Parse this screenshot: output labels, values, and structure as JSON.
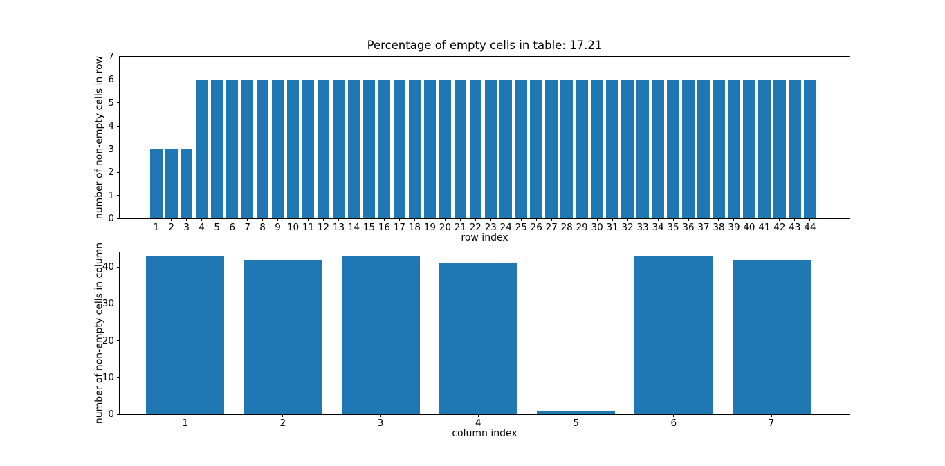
{
  "figure": {
    "background": "#ffffff",
    "bar_color": "#1f77b4",
    "axis_color": "#000000",
    "text_color": "#000000"
  },
  "chart_data": [
    {
      "type": "bar",
      "title": "Percentage of empty cells in table: 17.21",
      "xlabel": "row index",
      "ylabel": "number of non-empty cells in row",
      "x": [
        1,
        2,
        3,
        4,
        5,
        6,
        7,
        8,
        9,
        10,
        11,
        12,
        13,
        14,
        15,
        16,
        17,
        18,
        19,
        20,
        21,
        22,
        23,
        24,
        25,
        26,
        27,
        28,
        29,
        30,
        31,
        32,
        33,
        34,
        35,
        36,
        37,
        38,
        39,
        40,
        41,
        42,
        43,
        44
      ],
      "values": [
        3,
        3,
        3,
        6,
        6,
        6,
        6,
        6,
        6,
        6,
        6,
        6,
        6,
        6,
        6,
        6,
        6,
        6,
        6,
        6,
        6,
        6,
        6,
        6,
        6,
        6,
        6,
        6,
        6,
        6,
        6,
        6,
        6,
        6,
        6,
        6,
        6,
        6,
        6,
        6,
        6,
        6,
        6,
        6
      ],
      "xticks": [
        1,
        2,
        3,
        4,
        5,
        6,
        7,
        8,
        9,
        10,
        11,
        12,
        13,
        14,
        15,
        16,
        17,
        18,
        19,
        20,
        21,
        22,
        23,
        24,
        25,
        26,
        27,
        28,
        29,
        30,
        31,
        32,
        33,
        34,
        35,
        36,
        37,
        38,
        39,
        40,
        41,
        42,
        43,
        44
      ],
      "yticks": [
        0,
        1,
        2,
        3,
        4,
        5,
        6,
        7
      ],
      "xlim": [
        -1.4,
        46.6
      ],
      "ylim": [
        0,
        7
      ],
      "bar_width": 0.8,
      "grid": false,
      "legend_position": "none"
    },
    {
      "type": "bar",
      "title": "",
      "xlabel": "column index",
      "ylabel": "number of non-empty cells in column",
      "x": [
        1,
        2,
        3,
        4,
        5,
        6,
        7
      ],
      "values": [
        43,
        42,
        43,
        41,
        1,
        43,
        42
      ],
      "xticks": [
        1,
        2,
        3,
        4,
        5,
        6,
        7
      ],
      "yticks": [
        0,
        10,
        20,
        30,
        40
      ],
      "xlim": [
        0.33,
        7.8
      ],
      "ylim": [
        0,
        44
      ],
      "bar_width": 0.8,
      "grid": false,
      "legend_position": "none"
    }
  ]
}
